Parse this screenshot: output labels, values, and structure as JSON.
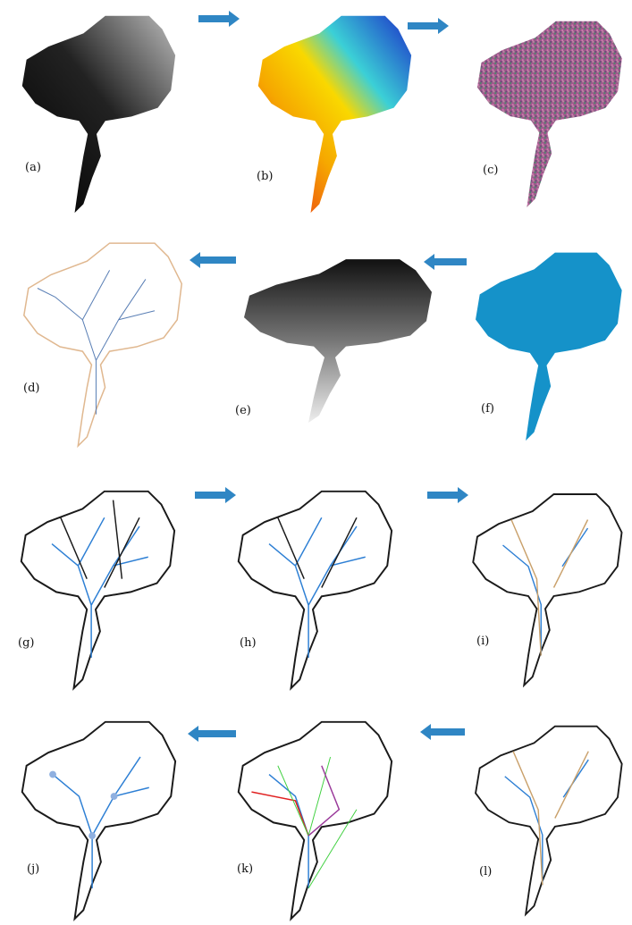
{
  "panels": [
    {
      "id": "a",
      "label": "(a)"
    },
    {
      "id": "b",
      "label": "(b)"
    },
    {
      "id": "c",
      "label": "(c)"
    },
    {
      "id": "d",
      "label": "(d)"
    },
    {
      "id": "e",
      "label": "(e)"
    },
    {
      "id": "f",
      "label": "(f)"
    },
    {
      "id": "g",
      "label": "(g)"
    },
    {
      "id": "h",
      "label": "(h)"
    },
    {
      "id": "i",
      "label": "(i)"
    },
    {
      "id": "j",
      "label": "(j)"
    },
    {
      "id": "k",
      "label": "(k)"
    },
    {
      "id": "l",
      "label": "(l)"
    }
  ],
  "colors": {
    "arrow": "#2f86c4",
    "stream": "#2d7fd4",
    "boundary": "#1a1a1a",
    "flow_route": "#c9a06a",
    "fill_blue": "#1592c9"
  }
}
